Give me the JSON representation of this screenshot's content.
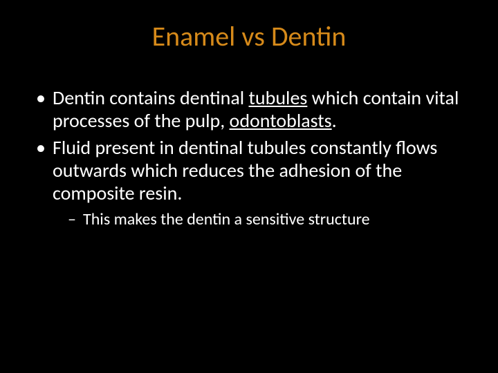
{
  "background_color": "#000000",
  "title": {
    "text": "Enamel vs Dentin",
    "color": "#d68a1a",
    "fontsize": 40
  },
  "body_text_color": "#ffffff",
  "body_fontsize": 28,
  "sub_fontsize": 24,
  "bullets": [
    {
      "html": "Dentin contains dentinal <u>tubules</u> which contain vital processes of the pulp, <u>odontoblasts</u>."
    },
    {
      "html": "Fluid present in dentinal tubules constantly flows outwards which reduces the adhesion of the composite resin.",
      "sub": [
        {
          "text": "This makes the dentin a sensitive structure"
        }
      ]
    }
  ]
}
